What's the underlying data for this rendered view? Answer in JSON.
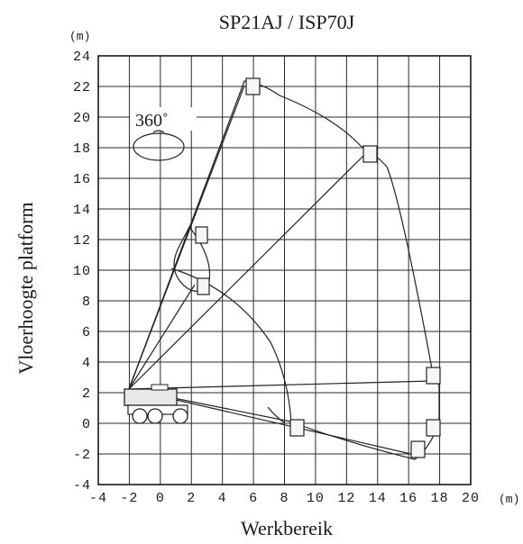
{
  "diagram": {
    "title": "SP21AJ / ISP70J",
    "y_unit": "(m)",
    "x_unit": "(m)",
    "y_axis_label": "Vloerhoogte platform",
    "x_axis_label": "Werkbereik",
    "rotation_label": "360˚",
    "x_ticks": [
      "-4",
      "-2",
      "0",
      "2",
      "4",
      "6",
      "8",
      "10",
      "12",
      "14",
      "16",
      "18",
      "20"
    ],
    "y_ticks": [
      "24",
      "22",
      "20",
      "18",
      "16",
      "14",
      "12",
      "10",
      "8",
      "6",
      "4",
      "2",
      "0",
      "-2",
      "-4"
    ]
  },
  "chart_data": {
    "type": "scatter",
    "title": "SP21AJ / ISP70J",
    "xlabel": "Werkbereik",
    "ylabel": "Vloerhoogte platform",
    "xlim": [
      -4,
      20
    ],
    "ylim": [
      -4,
      24
    ],
    "grid": true,
    "series": [
      {
        "x": [
          5.8,
          13.5,
          17.5,
          17.5,
          16.5,
          8.5,
          2.5,
          2.5,
          2.0
        ],
        "y": [
          22.0,
          17.8,
          3.0,
          0.0,
          -1.8,
          0.0,
          8.8,
          12.0,
          9.0
        ]
      }
    ]
  }
}
